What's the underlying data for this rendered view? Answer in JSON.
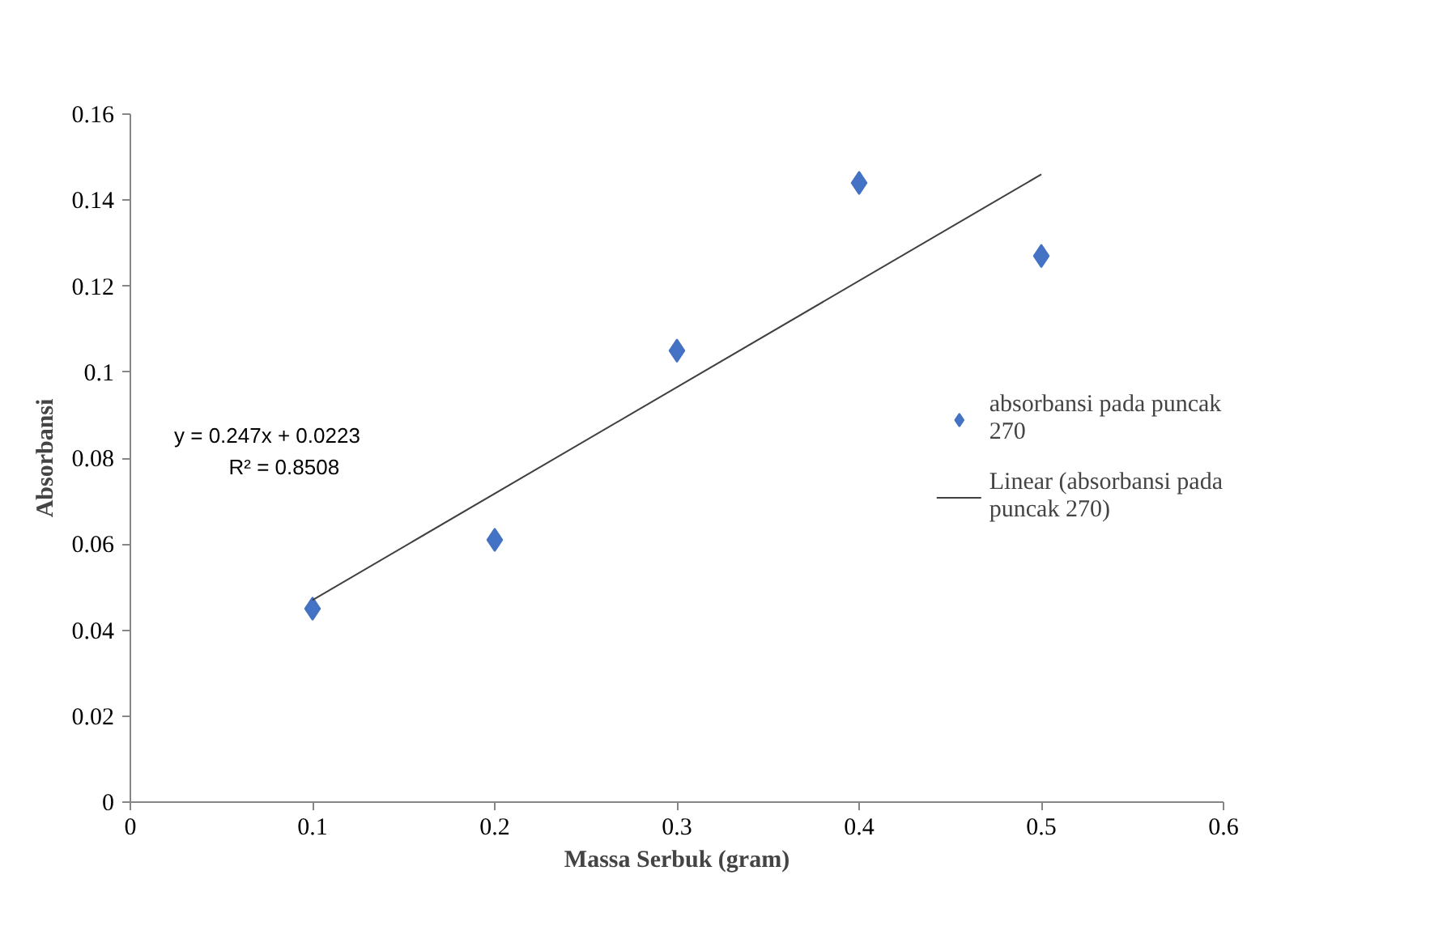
{
  "chart_data": {
    "type": "scatter",
    "xlabel": "Massa Serbuk (gram)",
    "ylabel": "Absorbansi",
    "xlim": [
      0,
      0.6
    ],
    "xticks": [
      0,
      0.1,
      0.2,
      0.3,
      0.4,
      0.5,
      0.6
    ],
    "ylim": [
      0,
      0.16
    ],
    "yticks": [
      0,
      0.02,
      0.04,
      0.06,
      0.08,
      0.1,
      0.12,
      0.14,
      0.16
    ],
    "grid": false,
    "legend": "right",
    "marker": "diamond",
    "annotations": [
      "y = 0.247x + 0.0223",
      "R² = 0.8508"
    ],
    "series": [
      {
        "name": "absorbansi pada puncak 270",
        "color": "#4472c4",
        "x": [
          0.1,
          0.2,
          0.3,
          0.4,
          0.5
        ],
        "values": [
          0.045,
          0.061,
          0.105,
          0.144,
          0.127
        ]
      },
      {
        "name": "Linear (absorbansi pada puncak 270)",
        "type": "line",
        "marker": "none",
        "line_style": "solid",
        "color": "#404040",
        "x": [
          0.1,
          0.5
        ],
        "values": [
          0.047,
          0.146
        ]
      }
    ]
  }
}
